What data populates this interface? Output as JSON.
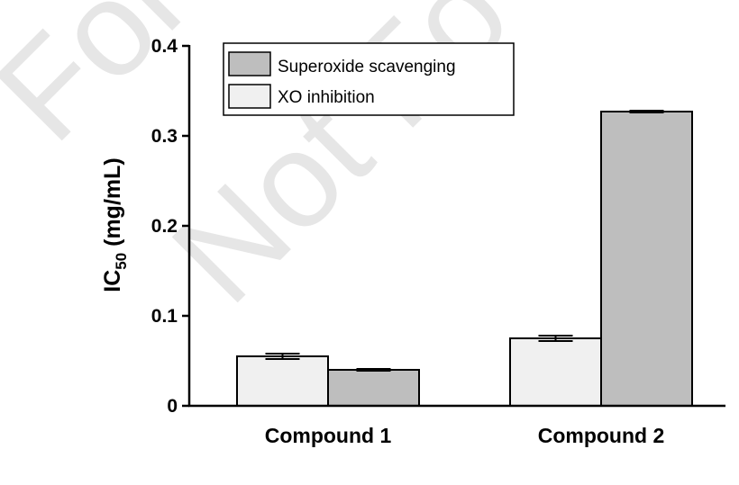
{
  "watermark": {
    "line1": "For",
    "line2": "Not Fo"
  },
  "chart_data": {
    "type": "bar",
    "categories": [
      "Compound 1",
      "Compound 2"
    ],
    "series": [
      {
        "name": "XO inhibition",
        "values": [
          0.055,
          0.075
        ],
        "errors": [
          0.003,
          0.003
        ],
        "color": "#f0f0f0"
      },
      {
        "name": "Superoxide scavenging",
        "values": [
          0.04,
          0.327
        ],
        "errors": [
          0.001,
          0.001
        ],
        "color": "#bebebe"
      }
    ],
    "legend_order": [
      1,
      0
    ],
    "legend_position": "top-left",
    "ylabel_main": "IC",
    "ylabel_sub": "50",
    "ylabel_unit": " (mg/mL)",
    "ylim": [
      0,
      0.4
    ],
    "yticks": [
      {
        "value": 0,
        "label": "0"
      },
      {
        "value": 0.1,
        "label": "0.1"
      },
      {
        "value": 0.2,
        "label": "0.2"
      },
      {
        "value": 0.3,
        "label": "0.3"
      },
      {
        "value": 0.4,
        "label": "0.4"
      }
    ]
  }
}
